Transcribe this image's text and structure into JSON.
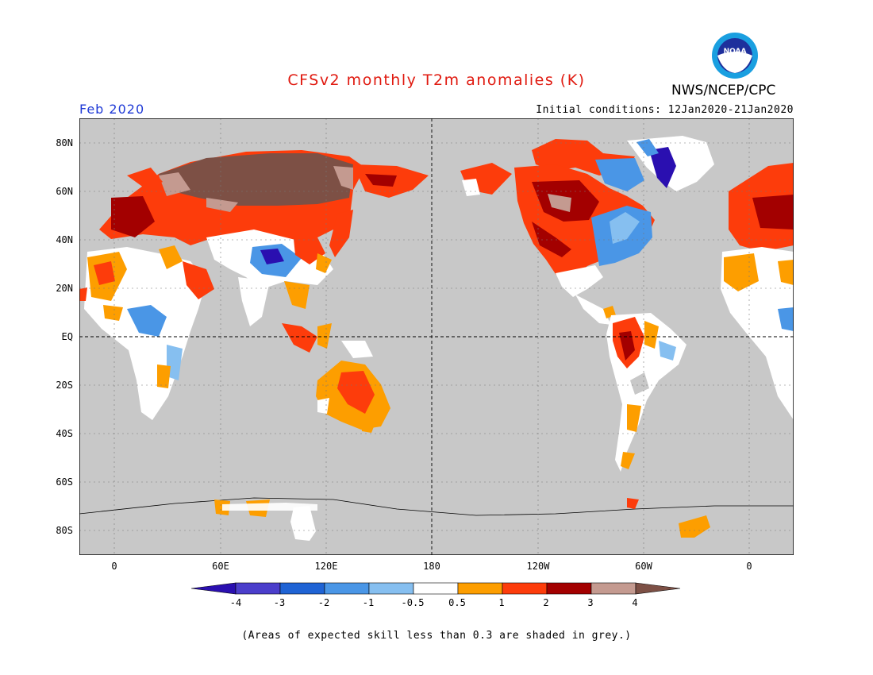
{
  "title": "CFSv2 monthly T2m anomalies (K)",
  "organization": "NWS/NCEP/CPC",
  "logo_text": "NOAA",
  "valid_month": "Feb 2020",
  "initial_conditions": "Initial conditions: 12Jan2020-21Jan2020",
  "lat_labels": [
    "80N",
    "60N",
    "40N",
    "20N",
    "EQ",
    "20S",
    "40S",
    "60S",
    "80S"
  ],
  "lon_labels": [
    "0",
    "60E",
    "120E",
    "180",
    "120W",
    "60W",
    "0"
  ],
  "colorbar": {
    "labels": [
      "-4",
      "-3",
      "-2",
      "-1",
      "-0.5",
      "0.5",
      "1",
      "2",
      "3",
      "4"
    ],
    "colors": [
      "#2a0fb0",
      "#4b3ecb",
      "#1f63d4",
      "#4a96e6",
      "#86bff0",
      "#ffffff",
      "#fd9e00",
      "#fd3c0b",
      "#a30000",
      "#c49a90",
      "#7d5045"
    ]
  },
  "footnote": "(Areas of expected skill less than 0.3 are shaded in grey.)",
  "colors": {
    "title": "#e0190f",
    "month": "#1f3ad6",
    "ocean": "#c8c8c8"
  }
}
